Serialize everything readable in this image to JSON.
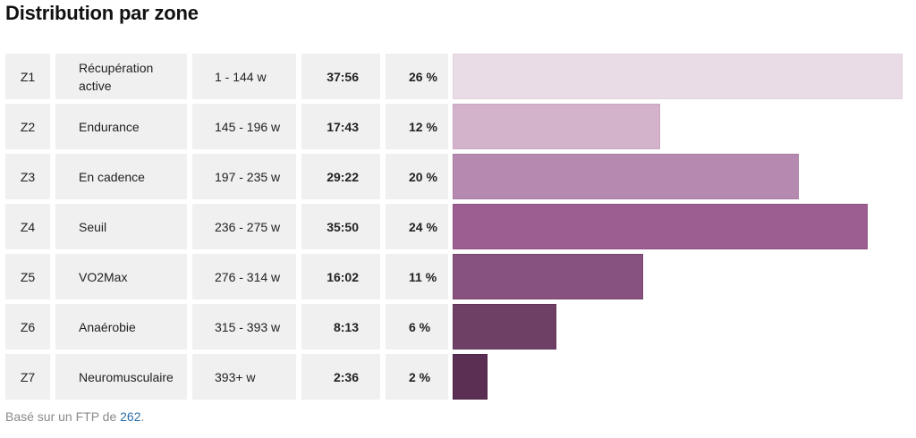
{
  "header": {
    "title": "Distribution par zone"
  },
  "chart_data": {
    "type": "bar",
    "orientation": "horizontal",
    "title": "Distribution par zone",
    "columns": [
      "zone",
      "name",
      "range",
      "time",
      "percent"
    ],
    "rows": [
      {
        "zone": "Z1",
        "name": "Récupération active",
        "range": "1 - 144 w",
        "time": "37:56",
        "percent_label": "26 %",
        "percent": 26,
        "color": "#eadce7",
        "border": "#e2d2df"
      },
      {
        "zone": "Z2",
        "name": "Endurance",
        "range": "145 - 196 w",
        "time": "17:43",
        "percent_label": "12 %",
        "percent": 12,
        "color": "#d3b3cc",
        "border": "#c9a5c1"
      },
      {
        "zone": "Z3",
        "name": "En cadence",
        "range": "197 - 235 w",
        "time": "29:22",
        "percent_label": "20 %",
        "percent": 20,
        "color": "#b689b0",
        "border": "#a87ca2"
      },
      {
        "zone": "Z4",
        "name": "Seuil",
        "range": "236 - 275 w",
        "time": "35:50",
        "percent_label": "24 %",
        "percent": 24,
        "color": "#9c5d90",
        "border": "#8e4f82"
      },
      {
        "zone": "Z5",
        "name": "VO2Max",
        "range": "276 - 314 w",
        "time": "16:02",
        "percent_label": "11 %",
        "percent": 11,
        "color": "#87527f",
        "border": "#784571"
      },
      {
        "zone": "Z6",
        "name": "Anaérobie",
        "range": "315 - 393 w",
        "time": "8:13",
        "percent_label": "6 %",
        "percent": 6,
        "color": "#6f4066",
        "border": "#603459"
      },
      {
        "zone": "Z7",
        "name": "Neuromusculaire",
        "range": "393+ w",
        "time": "2:36",
        "percent_label": "2 %",
        "percent": 2,
        "color": "#5b2f53",
        "border": "#4c2445"
      }
    ],
    "xlim": [
      0,
      26
    ]
  },
  "footer": {
    "prefix": "Basé sur un FTP de ",
    "ftp": "262",
    "suffix": "."
  }
}
